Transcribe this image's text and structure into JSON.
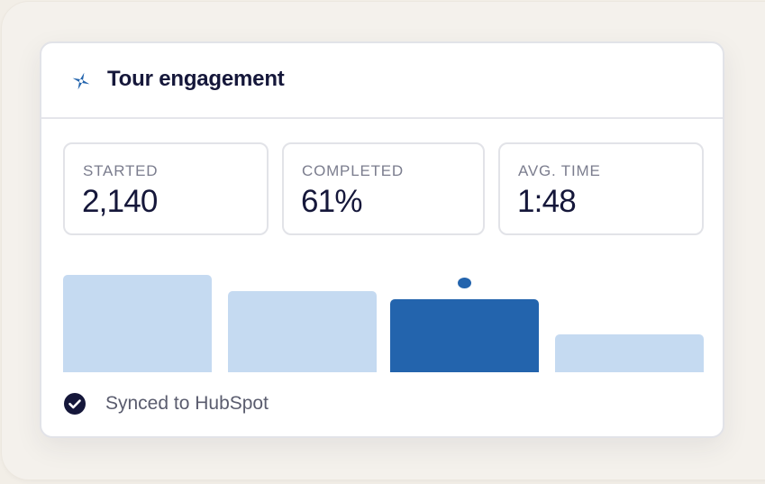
{
  "card": {
    "title": "Tour engagement",
    "icon": "sparkle-icon"
  },
  "stats": [
    {
      "label": "STARTED",
      "value": "2,140"
    },
    {
      "label": "COMPLETED",
      "value": "61%"
    },
    {
      "label": "AVG. TIME",
      "value": "1:48"
    }
  ],
  "chart_data": {
    "type": "bar",
    "values": [
      100,
      83,
      75,
      39
    ],
    "highlighted_index": 2,
    "colors": {
      "bar": "#c5daf1",
      "highlight": "#2364ad"
    },
    "title": "",
    "xlabel": "",
    "ylabel": ""
  },
  "footer": {
    "status": "Synced to HubSpot",
    "icon": "check-circle-icon"
  },
  "colors": {
    "accent": "#2364ad",
    "text": "#15173a",
    "muted": "#7b7d8e"
  }
}
